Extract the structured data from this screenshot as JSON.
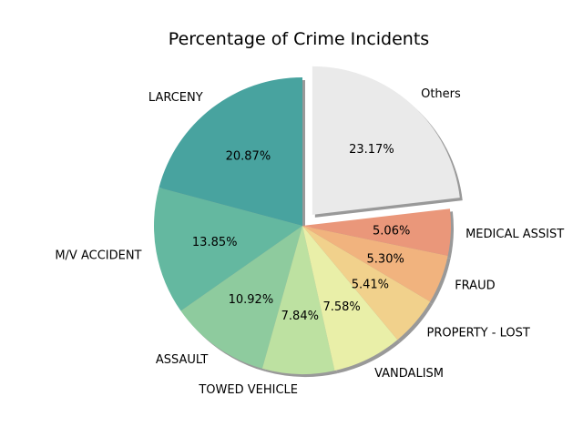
{
  "chart_data": {
    "type": "pie",
    "title": "Percentage of Crime Incidents",
    "slices": [
      {
        "label": "LARCENY",
        "value": 20.87,
        "pct_text": "20.87%",
        "color": "#48a39f"
      },
      {
        "label": "M/V ACCIDENT",
        "value": 13.85,
        "pct_text": "13.85%",
        "color": "#64b8a0"
      },
      {
        "label": "ASSAULT",
        "value": 10.92,
        "pct_text": "10.92%",
        "color": "#8ecb9e"
      },
      {
        "label": "TOWED VEHICLE",
        "value": 7.84,
        "pct_text": "7.84%",
        "color": "#bde1a1"
      },
      {
        "label": "VANDALISM",
        "value": 7.58,
        "pct_text": "7.58%",
        "color": "#e9efa8"
      },
      {
        "label": "PROPERTY - LOST",
        "value": 5.41,
        "pct_text": "5.41%",
        "color": "#f1d18c"
      },
      {
        "label": "FRAUD",
        "value": 5.3,
        "pct_text": "5.30%",
        "color": "#f1b37e"
      },
      {
        "label": "MEDICAL ASSIST",
        "value": 5.06,
        "pct_text": "5.06%",
        "color": "#ea977a"
      },
      {
        "label": "Others",
        "value": 23.17,
        "pct_text": "23.17%",
        "color": "#eaeaea",
        "exploded": true
      }
    ],
    "shadow": true,
    "legend": "none"
  }
}
